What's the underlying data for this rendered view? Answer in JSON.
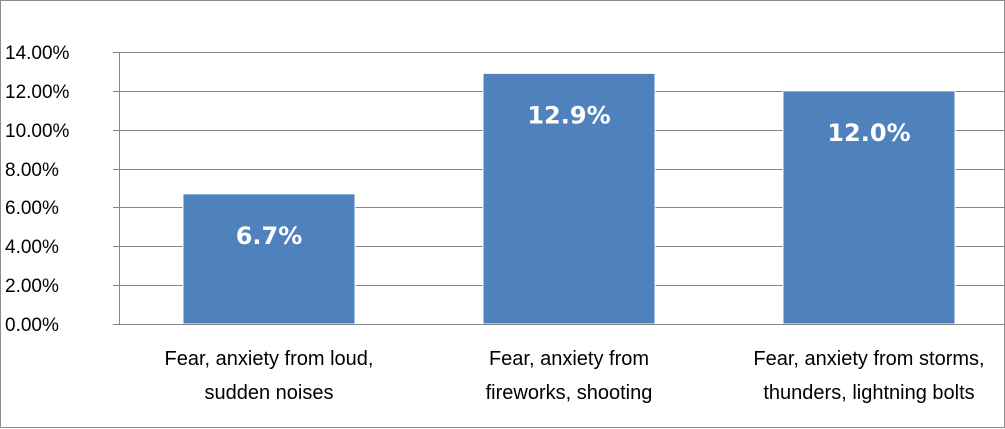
{
  "chart_data": {
    "type": "bar",
    "title": "",
    "xlabel": "",
    "ylabel": "",
    "categories": [
      [
        "Fear, anxiety from loud,",
        "sudden noises"
      ],
      [
        "Fear, anxiety from",
        "fireworks, shooting"
      ],
      [
        "Fear, anxiety from storms,",
        "thunders, lightning bolts"
      ]
    ],
    "values": [
      6.7,
      12.9,
      12.0
    ],
    "data_labels": [
      "6.7%",
      "12.9%",
      "12.0%"
    ],
    "ylim": [
      0,
      14
    ],
    "yticks": [
      0,
      2,
      4,
      6,
      8,
      10,
      12,
      14
    ],
    "ytick_labels": [
      "0.00%",
      "2.00%",
      "4.00%",
      "6.00%",
      "8.00%",
      "10.00%",
      "12.00%",
      "14.00%"
    ],
    "grid": true,
    "legend": "none",
    "colors": {
      "bar": "#4f81bd",
      "gridline": "#868686",
      "axis": "#868686",
      "border": "#8c8c8c"
    }
  }
}
